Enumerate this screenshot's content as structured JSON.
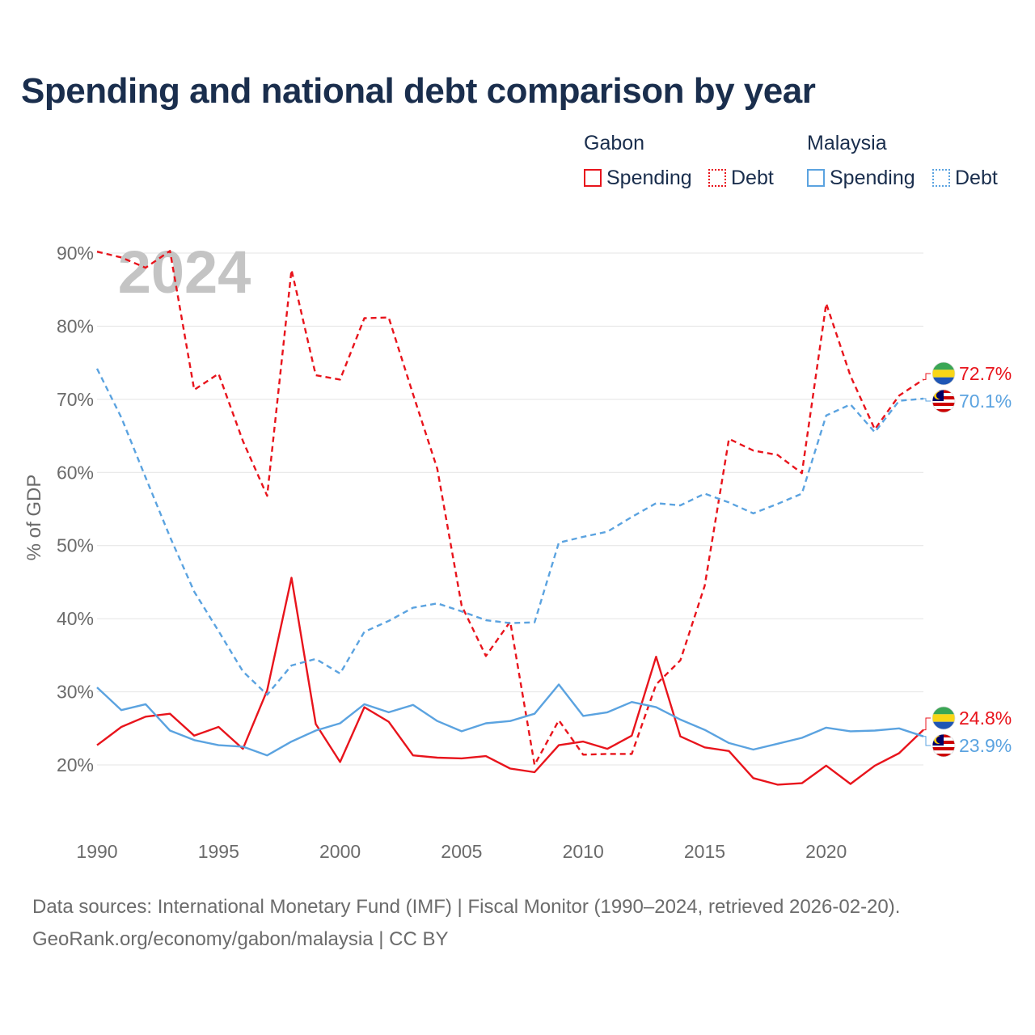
{
  "chart_data": {
    "type": "line",
    "title": "Spending and national debt comparison by year",
    "ylabel": "% of GDP",
    "xlabel": "",
    "ylim": [
      13,
      91
    ],
    "xlim": [
      1990,
      2024
    ],
    "year_label": "2024",
    "x_ticks": [
      1990,
      1995,
      2000,
      2005,
      2010,
      2015,
      2020
    ],
    "y_ticks": [
      20,
      30,
      40,
      50,
      60,
      70,
      80,
      90
    ],
    "y_tick_labels": [
      "20%",
      "30%",
      "40%",
      "50%",
      "60%",
      "70%",
      "80%",
      "90%"
    ],
    "x": [
      1990,
      1991,
      1992,
      1993,
      1994,
      1995,
      1996,
      1997,
      1998,
      1999,
      2000,
      2001,
      2002,
      2003,
      2004,
      2005,
      2006,
      2007,
      2008,
      2009,
      2010,
      2011,
      2012,
      2013,
      2014,
      2015,
      2016,
      2017,
      2018,
      2019,
      2020,
      2021,
      2022,
      2023,
      2024
    ],
    "series": [
      {
        "name": "Gabon Spending",
        "country": "Gabon",
        "measure": "Spending",
        "color": "#e8141c",
        "dash": "solid",
        "values": [
          22.7,
          25.2,
          26.6,
          27.0,
          24.0,
          25.2,
          22.2,
          30.2,
          45.6,
          25.6,
          20.4,
          27.9,
          25.9,
          21.3,
          21.0,
          20.9,
          21.2,
          19.5,
          19.0,
          22.7,
          23.2,
          22.2,
          24.0,
          34.8,
          23.9,
          22.4,
          21.9,
          18.2,
          17.3,
          17.5,
          19.9,
          17.4,
          19.9,
          21.6,
          24.8
        ],
        "end_label": "24.8%",
        "flag": "gabon-flag-icon"
      },
      {
        "name": "Gabon Debt",
        "country": "Gabon",
        "measure": "Debt",
        "color": "#e8141c",
        "dash": "dashed",
        "values": [
          90.2,
          89.4,
          88.0,
          90.3,
          71.3,
          73.5,
          64.3,
          56.8,
          87.7,
          73.3,
          72.7,
          81.1,
          81.2,
          70.7,
          60.5,
          41.8,
          34.9,
          39.6,
          20.0,
          26.1,
          21.4,
          21.5,
          21.5,
          31.0,
          34.3,
          44.5,
          64.6,
          63.0,
          62.4,
          59.9,
          83.1,
          73.2,
          65.9,
          70.5,
          72.7
        ],
        "end_label": "72.7%",
        "flag": "gabon-flag-icon"
      },
      {
        "name": "Malaysia Spending",
        "country": "Malaysia",
        "measure": "Spending",
        "color": "#5ba3e0",
        "dash": "solid",
        "values": [
          30.6,
          27.5,
          28.3,
          24.7,
          23.4,
          22.7,
          22.5,
          21.3,
          23.2,
          24.7,
          25.7,
          28.3,
          27.2,
          28.2,
          26.0,
          24.6,
          25.7,
          26.0,
          27.0,
          31.0,
          26.7,
          27.2,
          28.6,
          27.9,
          26.2,
          24.8,
          23.0,
          22.1,
          22.9,
          23.7,
          25.1,
          24.6,
          24.7,
          25.0,
          23.9
        ],
        "end_label": "23.9%",
        "flag": "malaysia-flag-icon"
      },
      {
        "name": "Malaysia Debt",
        "country": "Malaysia",
        "measure": "Debt",
        "color": "#5ba3e0",
        "dash": "dashed",
        "values": [
          74.2,
          67.5,
          59.3,
          51.2,
          43.7,
          38.3,
          32.8,
          29.6,
          33.6,
          34.5,
          32.5,
          38.2,
          39.7,
          41.5,
          42.1,
          41.0,
          39.8,
          39.4,
          39.5,
          50.4,
          51.2,
          51.9,
          53.9,
          55.8,
          55.5,
          57.1,
          55.9,
          54.4,
          55.7,
          57.1,
          67.8,
          69.3,
          65.5,
          69.8,
          70.1
        ],
        "end_label": "70.1%",
        "flag": "malaysia-flag-icon"
      }
    ]
  },
  "legend": {
    "groups": [
      {
        "title": "Gabon",
        "color": "#e8141c",
        "items": [
          {
            "label": "Spending",
            "style": "solid"
          },
          {
            "label": "Debt",
            "style": "dotted"
          }
        ]
      },
      {
        "title": "Malaysia",
        "color": "#5ba3e0",
        "items": [
          {
            "label": "Spending",
            "style": "solid"
          },
          {
            "label": "Debt",
            "style": "dotted"
          }
        ]
      }
    ]
  },
  "source": {
    "line1": "Data sources: International Monetary Fund (IMF) | Fiscal Monitor (1990–2024, retrieved 2026-02-20).",
    "line2": "GeoRank.org/economy/gabon/malaysia | CC BY"
  }
}
